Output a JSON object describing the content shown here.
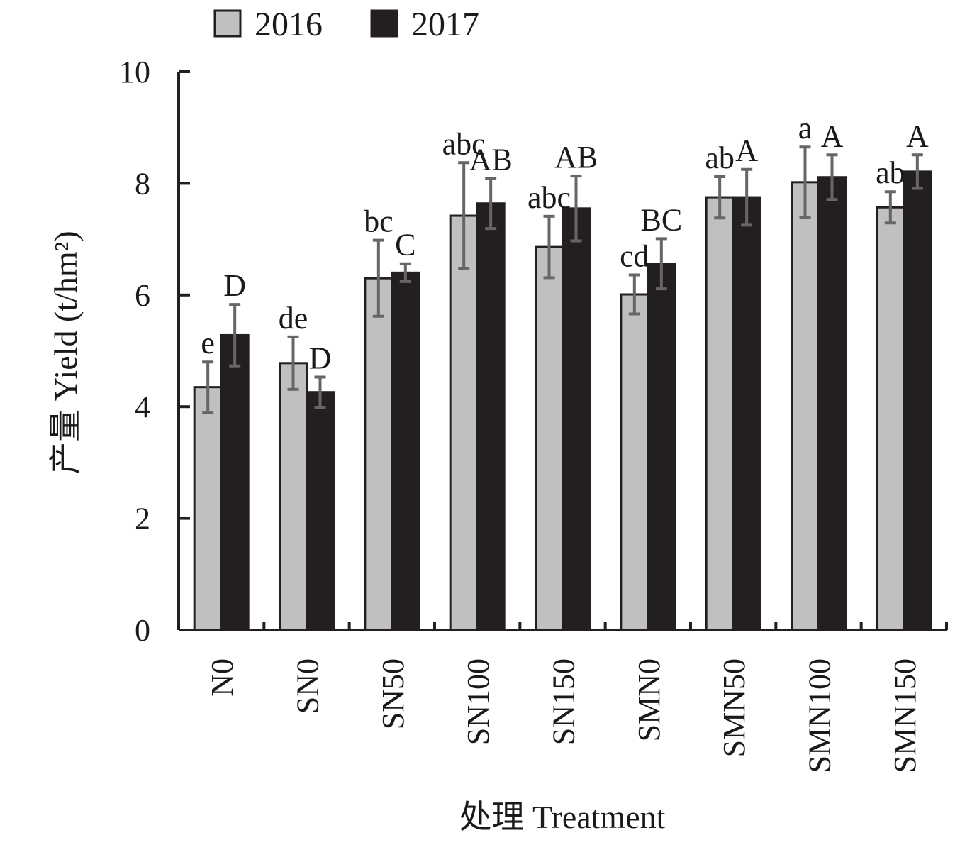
{
  "chart_data": {
    "type": "bar",
    "xlabel": "处理 Treatment",
    "ylabel": "产量 Yield (t/hm²)",
    "ylim": [
      0,
      10
    ],
    "yticks": [
      "0",
      "2",
      "4",
      "6",
      "8",
      "10"
    ],
    "grid": false,
    "legend_position": "top-left",
    "categories": [
      "N0",
      "SN0",
      "SN50",
      "SN100",
      "SN150",
      "SMN0",
      "SMN50",
      "SMN100",
      "SMN150"
    ],
    "series": [
      {
        "name": "2016",
        "color": "#c0c0c0",
        "values": [
          4.35,
          4.78,
          6.3,
          7.42,
          6.86,
          6.01,
          7.75,
          8.02,
          7.57
        ],
        "errors": [
          0.45,
          0.47,
          0.68,
          0.95,
          0.55,
          0.35,
          0.37,
          0.63,
          0.28
        ],
        "labels": [
          "e",
          "de",
          "bc",
          "abc",
          "abc",
          "cd",
          "ab",
          "a",
          "ab"
        ]
      },
      {
        "name": "2017",
        "color": "#231f20",
        "values": [
          5.28,
          4.26,
          6.4,
          7.64,
          7.55,
          6.56,
          7.75,
          8.11,
          8.21
        ],
        "errors": [
          0.55,
          0.27,
          0.16,
          0.45,
          0.58,
          0.45,
          0.5,
          0.4,
          0.3
        ],
        "labels": [
          "D",
          "D",
          "C",
          "AB",
          "AB",
          "BC",
          "A",
          "A",
          "A"
        ]
      }
    ]
  }
}
